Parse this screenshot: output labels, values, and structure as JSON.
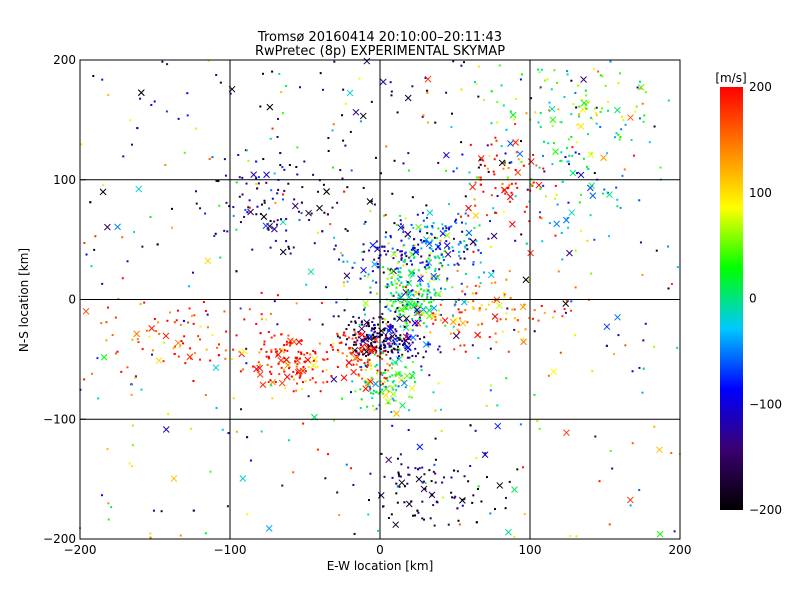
{
  "chart_data": {
    "type": "scatter",
    "title": "Tromsø 20160414 20:10:00–20:11:43",
    "subtitle": "RwPretec (8p) EXPERIMENTAL SKYMAP",
    "xlabel": "E-W location [km]",
    "ylabel": "N-S location [km]",
    "xlim": [
      -200,
      200
    ],
    "ylim": [
      -200,
      200
    ],
    "x_ticks": [
      "−200",
      "−100",
      "0",
      "100",
      "200"
    ],
    "y_ticks": [
      "−200",
      "−100",
      "0",
      "100",
      "200"
    ],
    "grid": true,
    "colorbar": {
      "label": "[m/s]",
      "range": [
        -200,
        200
      ],
      "ticks": [
        "200",
        "100",
        "0",
        "−100",
        "−200"
      ],
      "colormap": [
        "#000000",
        "#3a0070",
        "#0000ff",
        "#00c8ff",
        "#00ff00",
        "#ffff00",
        "#ff8000",
        "#ff0000"
      ]
    },
    "marker_types": [
      "dot",
      "x"
    ],
    "clusters": [
      {
        "x": -5,
        "y": -30,
        "v": -180,
        "sx": 10,
        "sy": 10
      },
      {
        "x": 10,
        "y": -35,
        "v": -110,
        "sx": 12,
        "sy": 8
      },
      {
        "x": -10,
        "y": -45,
        "v": 190,
        "sx": 12,
        "sy": 12
      },
      {
        "x": 5,
        "y": -70,
        "v": 20,
        "sx": 10,
        "sy": 12
      },
      {
        "x": 20,
        "y": 0,
        "v": 10,
        "sx": 15,
        "sy": 12
      },
      {
        "x": 10,
        "y": 35,
        "v": -90,
        "sx": 20,
        "sy": 15
      },
      {
        "x": 40,
        "y": 50,
        "v": -50,
        "sx": 15,
        "sy": 15
      },
      {
        "x": 80,
        "y": 100,
        "v": 190,
        "sx": 15,
        "sy": 20
      },
      {
        "x": 130,
        "y": 100,
        "v": -20,
        "sx": 30,
        "sy": 35
      },
      {
        "x": 130,
        "y": 160,
        "v": 40,
        "sx": 30,
        "sy": 20
      },
      {
        "x": -75,
        "y": 80,
        "v": -140,
        "sx": 20,
        "sy": 20
      },
      {
        "x": -120,
        "y": -30,
        "v": 170,
        "sx": 35,
        "sy": 20
      },
      {
        "x": -60,
        "y": -55,
        "v": 190,
        "sx": 15,
        "sy": 10
      },
      {
        "x": 30,
        "y": -160,
        "v": -170,
        "sx": 25,
        "sy": 15
      },
      {
        "x": 70,
        "y": -10,
        "v": 150,
        "sx": 25,
        "sy": 15
      },
      {
        "x": 0,
        "y": 110,
        "v": -190,
        "sx": 60,
        "sy": 60
      },
      {
        "x": 25,
        "y": 20,
        "v": 30,
        "sx": 15,
        "sy": 20
      }
    ]
  }
}
